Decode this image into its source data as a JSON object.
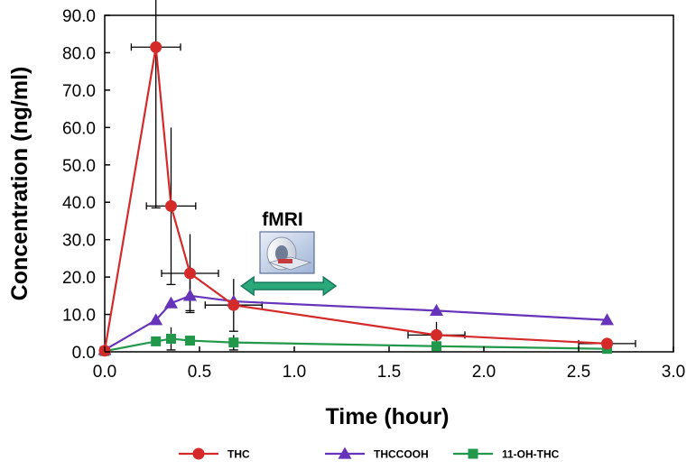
{
  "chart_data": {
    "type": "line",
    "title": "",
    "xlabel": "Time (hour)",
    "ylabel": "Concentration (ng/ml)",
    "xlim": [
      0,
      3.0
    ],
    "ylim": [
      0,
      90.0
    ],
    "x_ticks": [
      "0.0",
      "0.5",
      "1.0",
      "1.5",
      "2.0",
      "2.5",
      "3.0"
    ],
    "y_ticks": [
      "0.0",
      "10.0",
      "20.0",
      "30.0",
      "40.0",
      "50.0",
      "60.0",
      "70.0",
      "80.0",
      "90.0"
    ],
    "grid": false,
    "legend_placement": "bottom",
    "series": [
      {
        "name": "THC",
        "color": "#d42a2a",
        "marker": "circle",
        "x": [
          0.0,
          0.27,
          0.35,
          0.45,
          0.68,
          1.75,
          2.65
        ],
        "y": [
          0.3,
          81.5,
          39.0,
          21.0,
          12.5,
          4.5,
          2.2
        ],
        "x_err": [
          0,
          0.13,
          0.13,
          0.15,
          0.15,
          0.15,
          0.15
        ],
        "y_err": [
          0,
          43.0,
          21.0,
          10.5,
          7.0,
          3.5,
          0
        ]
      },
      {
        "name": "THCCOOH",
        "color": "#6633bb",
        "marker": "triangle",
        "x": [
          0.0,
          0.27,
          0.35,
          0.45,
          0.68,
          1.75,
          2.65
        ],
        "y": [
          0.5,
          8.5,
          13.0,
          15.0,
          13.5,
          11.0,
          8.5
        ],
        "x_err": [
          0,
          0,
          0,
          0,
          0,
          0,
          0
        ],
        "y_err": [
          0,
          0,
          0,
          4.0,
          0,
          0,
          0
        ]
      },
      {
        "name": "11-OH-THC",
        "color": "#22994a",
        "marker": "square",
        "x": [
          0.0,
          0.27,
          0.35,
          0.45,
          0.68,
          1.75,
          2.65
        ],
        "y": [
          0.2,
          2.8,
          3.5,
          3.0,
          2.5,
          1.5,
          0.8
        ],
        "x_err": [
          0,
          0,
          0,
          0,
          0,
          0,
          0
        ],
        "y_err": [
          0,
          0,
          3.0,
          0,
          2.0,
          0,
          0
        ]
      }
    ],
    "annotation": {
      "label": "fMRI",
      "icon": "fmri-scanner-icon",
      "arrow_start": 0.72,
      "arrow_end": 1.22,
      "arrow_y": 17.6,
      "arrow_color": "#2aa87a"
    }
  }
}
